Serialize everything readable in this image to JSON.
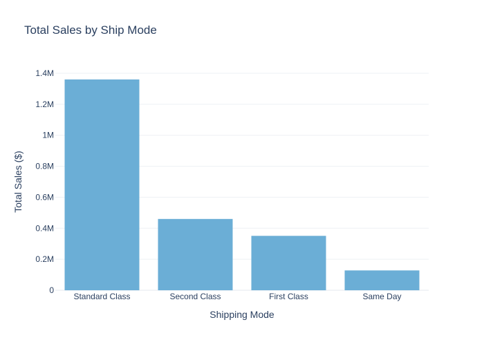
{
  "chart_data": {
    "type": "bar",
    "title": "Total Sales by Ship Mode",
    "xlabel": "Shipping Mode",
    "ylabel": "Total Sales ($)",
    "categories": [
      "Standard Class",
      "Second Class",
      "First Class",
      "Same Day"
    ],
    "values": [
      1360000,
      460000,
      351000,
      128000
    ],
    "ylim": [
      0,
      1400000
    ],
    "yticks": [
      0,
      200000,
      400000,
      600000,
      800000,
      1000000,
      1200000,
      1400000
    ],
    "ytick_labels": [
      "0",
      "0.2M",
      "0.4M",
      "0.6M",
      "0.8M",
      "1M",
      "1.2M",
      "1.4M"
    ],
    "grid": true,
    "legend": "none",
    "colors": {
      "bar": "#6baed6",
      "grid": "#eef0f4",
      "axis_text": "#2a3f5f",
      "title": "#2a3f5f"
    }
  }
}
